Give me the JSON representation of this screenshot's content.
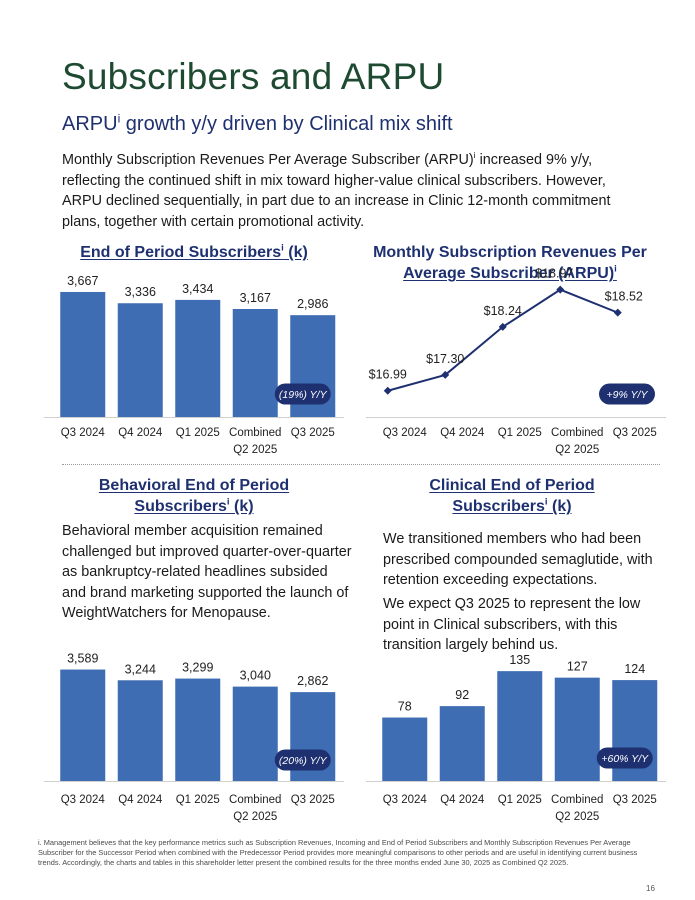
{
  "page": {
    "title": "Subscribers and ARPU",
    "subtitle_pre": "ARPU",
    "subtitle_sup": "i",
    "subtitle_post": " growth y/y driven by Clinical mix shift",
    "intro_pre": "Monthly Subscription Revenues Per Average Subscriber (ARPU)",
    "intro_sup": "i",
    "intro_post": " increased 9% y/y, reflecting the continued shift in mix toward higher-value clinical subscribers. However, ARPU declined sequentially, in part due to an increase in Clinic 12-month commitment plans, together with certain promotional activity.",
    "footnote": "i. Management believes that the key performance metrics such as Subscription Revenues, Incoming and End of Period Subscribers and Monthly Subscription Revenues Per Average Subscriber for the Successor Period when combined with the Predecessor Period provides more meaningful comparisons to other periods and are useful in identifying current business trends. Accordingly, the charts and tables in this shareholder letter present the combined results for the three months ended June 30, 2025 as Combined Q2 2025.",
    "page_number": "16"
  },
  "sections": {
    "behavioral_text": "Behavioral member acquisition remained challenged but improved quarter-over-quarter as bankruptcy-related headlines subsided and brand marketing supported the launch of WeightWatchers for Menopause.",
    "clinical_text_1": "We transitioned members who had been prescribed compounded semaglutide, with retention exceeding expectations.",
    "clinical_text_2": "We expect Q3 2025 to represent the low point in Clinical subscribers, with this transition largely behind us."
  },
  "chart_data": [
    {
      "type": "bar",
      "title_pre": "End of Period Subscribers",
      "title_sup": "i",
      "title_post": " (k)",
      "categories": [
        "Q3 2024",
        "Q4 2024",
        "Q1 2025",
        "Combined Q2 2025",
        "Q3 2025"
      ],
      "values": [
        3667,
        3336,
        3434,
        3167,
        2986
      ],
      "value_labels": [
        "3,667",
        "3,336",
        "3,434",
        "3,167",
        "2,986"
      ],
      "badge": "(19%) Y/Y",
      "ylim": [
        0,
        3900
      ],
      "color": "#3f6db3"
    },
    {
      "type": "line",
      "title_line1": "Monthly Subscription Revenues Per",
      "title_line2_pre": "Average Subscriber (ARPU)",
      "title_sup": "i",
      "categories": [
        "Q3 2024",
        "Q4 2024",
        "Q1 2025",
        "Combined Q2 2025",
        "Q3 2025"
      ],
      "values": [
        16.99,
        17.3,
        18.24,
        18.97,
        18.52
      ],
      "value_labels": [
        "$16.99",
        "$17.30",
        "$18.24",
        "$18.97",
        "$18.52"
      ],
      "badge": "+9% Y/Y",
      "ylim": [
        16.75,
        19.1
      ],
      "color": "#1e3070"
    },
    {
      "type": "bar",
      "title_line1": "Behavioral End of Period",
      "title_line2_pre": "Subscribers",
      "title_sup": "i",
      "title_post": " (k)",
      "categories": [
        "Q3 2024",
        "Q4 2024",
        "Q1 2025",
        "Combined Q2 2025",
        "Q3 2025"
      ],
      "values": [
        3589,
        3244,
        3299,
        3040,
        2862
      ],
      "value_labels": [
        "3,589",
        "3,244",
        "3,299",
        "3,040",
        "2,862"
      ],
      "badge": "(20%) Y/Y",
      "ylim": [
        0,
        3800
      ],
      "color": "#3f6db3"
    },
    {
      "type": "bar",
      "title_line1": "Clinical End of Period",
      "title_line2_pre": "Subscribers",
      "title_sup": "i",
      "title_post": " (k)",
      "categories": [
        "Q3 2024",
        "Q4 2024",
        "Q1 2025",
        "Combined Q2 2025",
        "Q3 2025"
      ],
      "values": [
        78,
        92,
        135,
        127,
        124
      ],
      "value_labels": [
        "78",
        "92",
        "135",
        "127",
        "124"
      ],
      "badge": "+60% Y/Y",
      "ylim": [
        0,
        145
      ],
      "color": "#3f6db3"
    }
  ],
  "colors": {
    "title_green": "#1e4a32",
    "navy": "#1e3070",
    "bar_blue": "#3f6db3"
  }
}
